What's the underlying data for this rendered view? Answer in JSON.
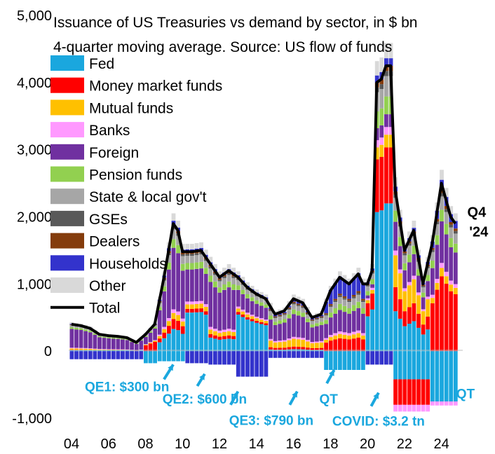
{
  "chart_data": {
    "type": "bar",
    "title": "Issuance of US Treasuries vs demand by sector, in $ bn",
    "subtitle": "4-quarter moving average. Source: US flow of funds",
    "ylim": [
      -1000,
      5000
    ],
    "yticks": [
      {
        "value": 5000,
        "label": "5,000"
      },
      {
        "value": 4000,
        "label": "4,000"
      },
      {
        "value": 3000,
        "label": "3,000"
      },
      {
        "value": 2000,
        "label": "2,000"
      },
      {
        "value": 1000,
        "label": "1,000"
      },
      {
        "value": 0,
        "label": "0"
      },
      {
        "value": -1000,
        "label": "-1,000"
      }
    ],
    "xticks": [
      {
        "year": 2004,
        "label": "04"
      },
      {
        "year": 2006,
        "label": "06"
      },
      {
        "year": 2008,
        "label": "08"
      },
      {
        "year": 2010,
        "label": "10"
      },
      {
        "year": 2012,
        "label": "12"
      },
      {
        "year": 2014,
        "label": "14"
      },
      {
        "year": 2016,
        "label": "16"
      },
      {
        "year": 2018,
        "label": "18"
      },
      {
        "year": 2020,
        "label": "20"
      },
      {
        "year": 2022,
        "label": "22"
      },
      {
        "year": 2024,
        "label": "24"
      }
    ],
    "legend": "top-left",
    "series": [
      {
        "name": "Fed",
        "color": "#1aa7de"
      },
      {
        "name": "Money market funds",
        "color": "#ff0000"
      },
      {
        "name": "Mutual funds",
        "color": "#ffc000"
      },
      {
        "name": "Banks",
        "color": "#ff99ff"
      },
      {
        "name": "Foreign",
        "color": "#7030a0"
      },
      {
        "name": "Pension funds",
        "color": "#92d050"
      },
      {
        "name": "State & local gov't",
        "color": "#a6a6a6"
      },
      {
        "name": "GSEs",
        "color": "#595959"
      },
      {
        "name": "Dealers",
        "color": "#843c0c"
      },
      {
        "name": "Households",
        "color": "#3333cc"
      },
      {
        "name": "Other",
        "color": "#d9d9d9"
      }
    ],
    "total": {
      "name": "Total",
      "color": "#000000",
      "points": [
        [
          2004.0,
          400
        ],
        [
          2004.5,
          380
        ],
        [
          2005.0,
          340
        ],
        [
          2005.5,
          250
        ],
        [
          2006.0,
          230
        ],
        [
          2006.5,
          220
        ],
        [
          2007.0,
          200
        ],
        [
          2007.5,
          130
        ],
        [
          2008.0,
          250
        ],
        [
          2008.5,
          400
        ],
        [
          2009.0,
          1100
        ],
        [
          2009.5,
          1900
        ],
        [
          2009.75,
          1800
        ],
        [
          2010.0,
          1480
        ],
        [
          2010.5,
          1480
        ],
        [
          2011.0,
          1500
        ],
        [
          2011.5,
          1300
        ],
        [
          2012.0,
          1100
        ],
        [
          2012.5,
          1200
        ],
        [
          2013.0,
          1100
        ],
        [
          2013.5,
          950
        ],
        [
          2014.0,
          850
        ],
        [
          2014.5,
          780
        ],
        [
          2015.0,
          550
        ],
        [
          2015.5,
          600
        ],
        [
          2016.0,
          780
        ],
        [
          2016.5,
          720
        ],
        [
          2017.0,
          500
        ],
        [
          2017.5,
          550
        ],
        [
          2018.0,
          900
        ],
        [
          2018.5,
          1100
        ],
        [
          2019.0,
          1000
        ],
        [
          2019.5,
          1150
        ],
        [
          2019.75,
          1000
        ],
        [
          2020.0,
          1000
        ],
        [
          2020.25,
          1200
        ],
        [
          2020.5,
          4000
        ],
        [
          2020.75,
          4050
        ],
        [
          2021.0,
          4250
        ],
        [
          2021.25,
          4250
        ],
        [
          2021.5,
          2400
        ],
        [
          2022.0,
          1500
        ],
        [
          2022.5,
          1800
        ],
        [
          2023.0,
          1000
        ],
        [
          2023.5,
          1600
        ],
        [
          2024.0,
          2500
        ],
        [
          2024.5,
          2000
        ],
        [
          2024.75,
          1900
        ]
      ]
    },
    "annotations": [
      {
        "label": "QE1: $300 bn",
        "year": 2007.0,
        "value": -600
      },
      {
        "label": "QE2: $600 bn",
        "year": 2011.2,
        "value": -780
      },
      {
        "label": "QE3: $790 bn",
        "year": 2014.8,
        "value": -1100
      },
      {
        "label": "QT",
        "year": 2017.9,
        "value": -780
      },
      {
        "label": "COVID: $3.2 tn",
        "year": 2020.6,
        "value": -1110
      },
      {
        "label": "QT",
        "year": 2025.3,
        "value": -700
      },
      {
        "label": "Q4",
        "year": 2025.4,
        "value": 2000
      },
      {
        "label": "'24",
        "year": 2025.5,
        "value": 1710
      }
    ]
  }
}
